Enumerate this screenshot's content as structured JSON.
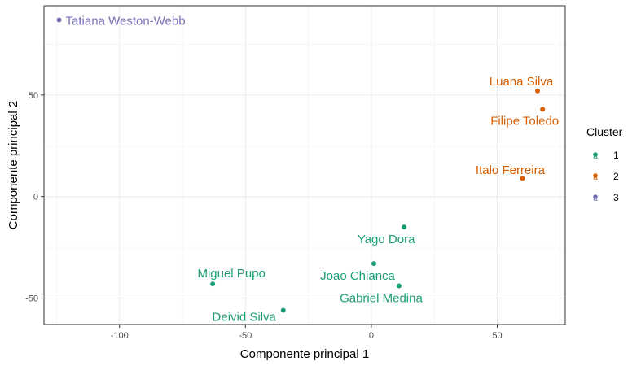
{
  "chart_data": {
    "type": "scatter",
    "title": "",
    "xlabel": "Componente principal 1",
    "ylabel": "Componente principal 2",
    "xlim": [
      -130,
      77
    ],
    "ylim": [
      -63,
      94
    ],
    "x_ticks": [
      -100,
      -50,
      0,
      50
    ],
    "y_ticks": [
      -50,
      0,
      50
    ],
    "grid": true,
    "legend": {
      "title": "Cluster",
      "placement": "right",
      "entries": [
        {
          "label": "1",
          "color": "#1b9e77"
        },
        {
          "label": "2",
          "color": "#d95f02"
        },
        {
          "label": "3",
          "color": "#7570b3"
        }
      ]
    },
    "points": [
      {
        "name": "Tatiana Weston-Webb",
        "x": -124,
        "y": 87,
        "cluster": "3"
      },
      {
        "name": "Luana Silva",
        "x": 66,
        "y": 52,
        "cluster": "2"
      },
      {
        "name": "Filipe Toledo",
        "x": 68,
        "y": 43,
        "cluster": "2"
      },
      {
        "name": "Italo Ferreira",
        "x": 60,
        "y": 9,
        "cluster": "2"
      },
      {
        "name": "Yago Dora",
        "x": 13,
        "y": -15,
        "cluster": "1"
      },
      {
        "name": "Joao Chianca",
        "x": 1,
        "y": -33,
        "cluster": "1"
      },
      {
        "name": "Gabriel Medina",
        "x": 11,
        "y": -44,
        "cluster": "1"
      },
      {
        "name": "Miguel Pupo",
        "x": -63,
        "y": -43,
        "cluster": "1"
      },
      {
        "name": "Deivid Silva",
        "x": -35,
        "y": -56,
        "cluster": "1"
      }
    ]
  }
}
